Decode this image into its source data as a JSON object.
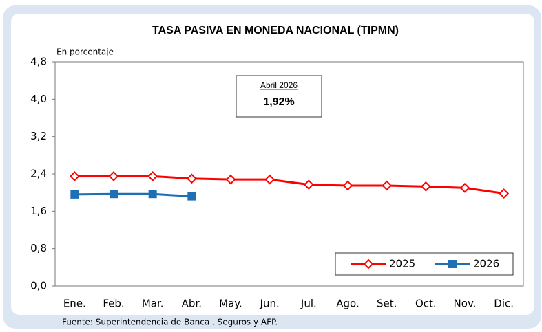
{
  "chart_data": {
    "type": "line",
    "title": "TASA PASIVA EN MONEDA NACIONAL (TIPMN)",
    "y_axis_label": "En porcentaje",
    "source": "Fuente: Superintendencia de Banca , Seguros y AFP.",
    "annotation": {
      "title": "Abril 2026",
      "value": "1,92%"
    },
    "categories": [
      "Ene.",
      "Feb.",
      "Mar.",
      "Abr.",
      "May.",
      "Jun.",
      "Jul.",
      "Ago.",
      "Set.",
      "Oct.",
      "Nov.",
      "Dic."
    ],
    "series": [
      {
        "name": "2025",
        "color": "#ff0000",
        "marker": "diamond",
        "values": [
          2.35,
          2.35,
          2.35,
          2.3,
          2.28,
          2.28,
          2.17,
          2.15,
          2.15,
          2.13,
          2.1,
          1.98
        ]
      },
      {
        "name": "2026",
        "color": "#1f6fb5",
        "marker": "square",
        "values": [
          1.96,
          1.97,
          1.97,
          1.92,
          null,
          null,
          null,
          null,
          null,
          null,
          null,
          null
        ]
      }
    ],
    "ylim": [
      0,
      4.8
    ],
    "yticks": [
      {
        "value": 0,
        "label": "0,0"
      },
      {
        "value": 0.8,
        "label": "0,8"
      },
      {
        "value": 1.6,
        "label": "1,6"
      },
      {
        "value": 2.4,
        "label": "2,4"
      },
      {
        "value": 3.2,
        "label": "3,2"
      },
      {
        "value": 4.0,
        "label": "4,0"
      },
      {
        "value": 4.8,
        "label": "4,8"
      }
    ],
    "grid": false,
    "legend": "bottom-right"
  }
}
